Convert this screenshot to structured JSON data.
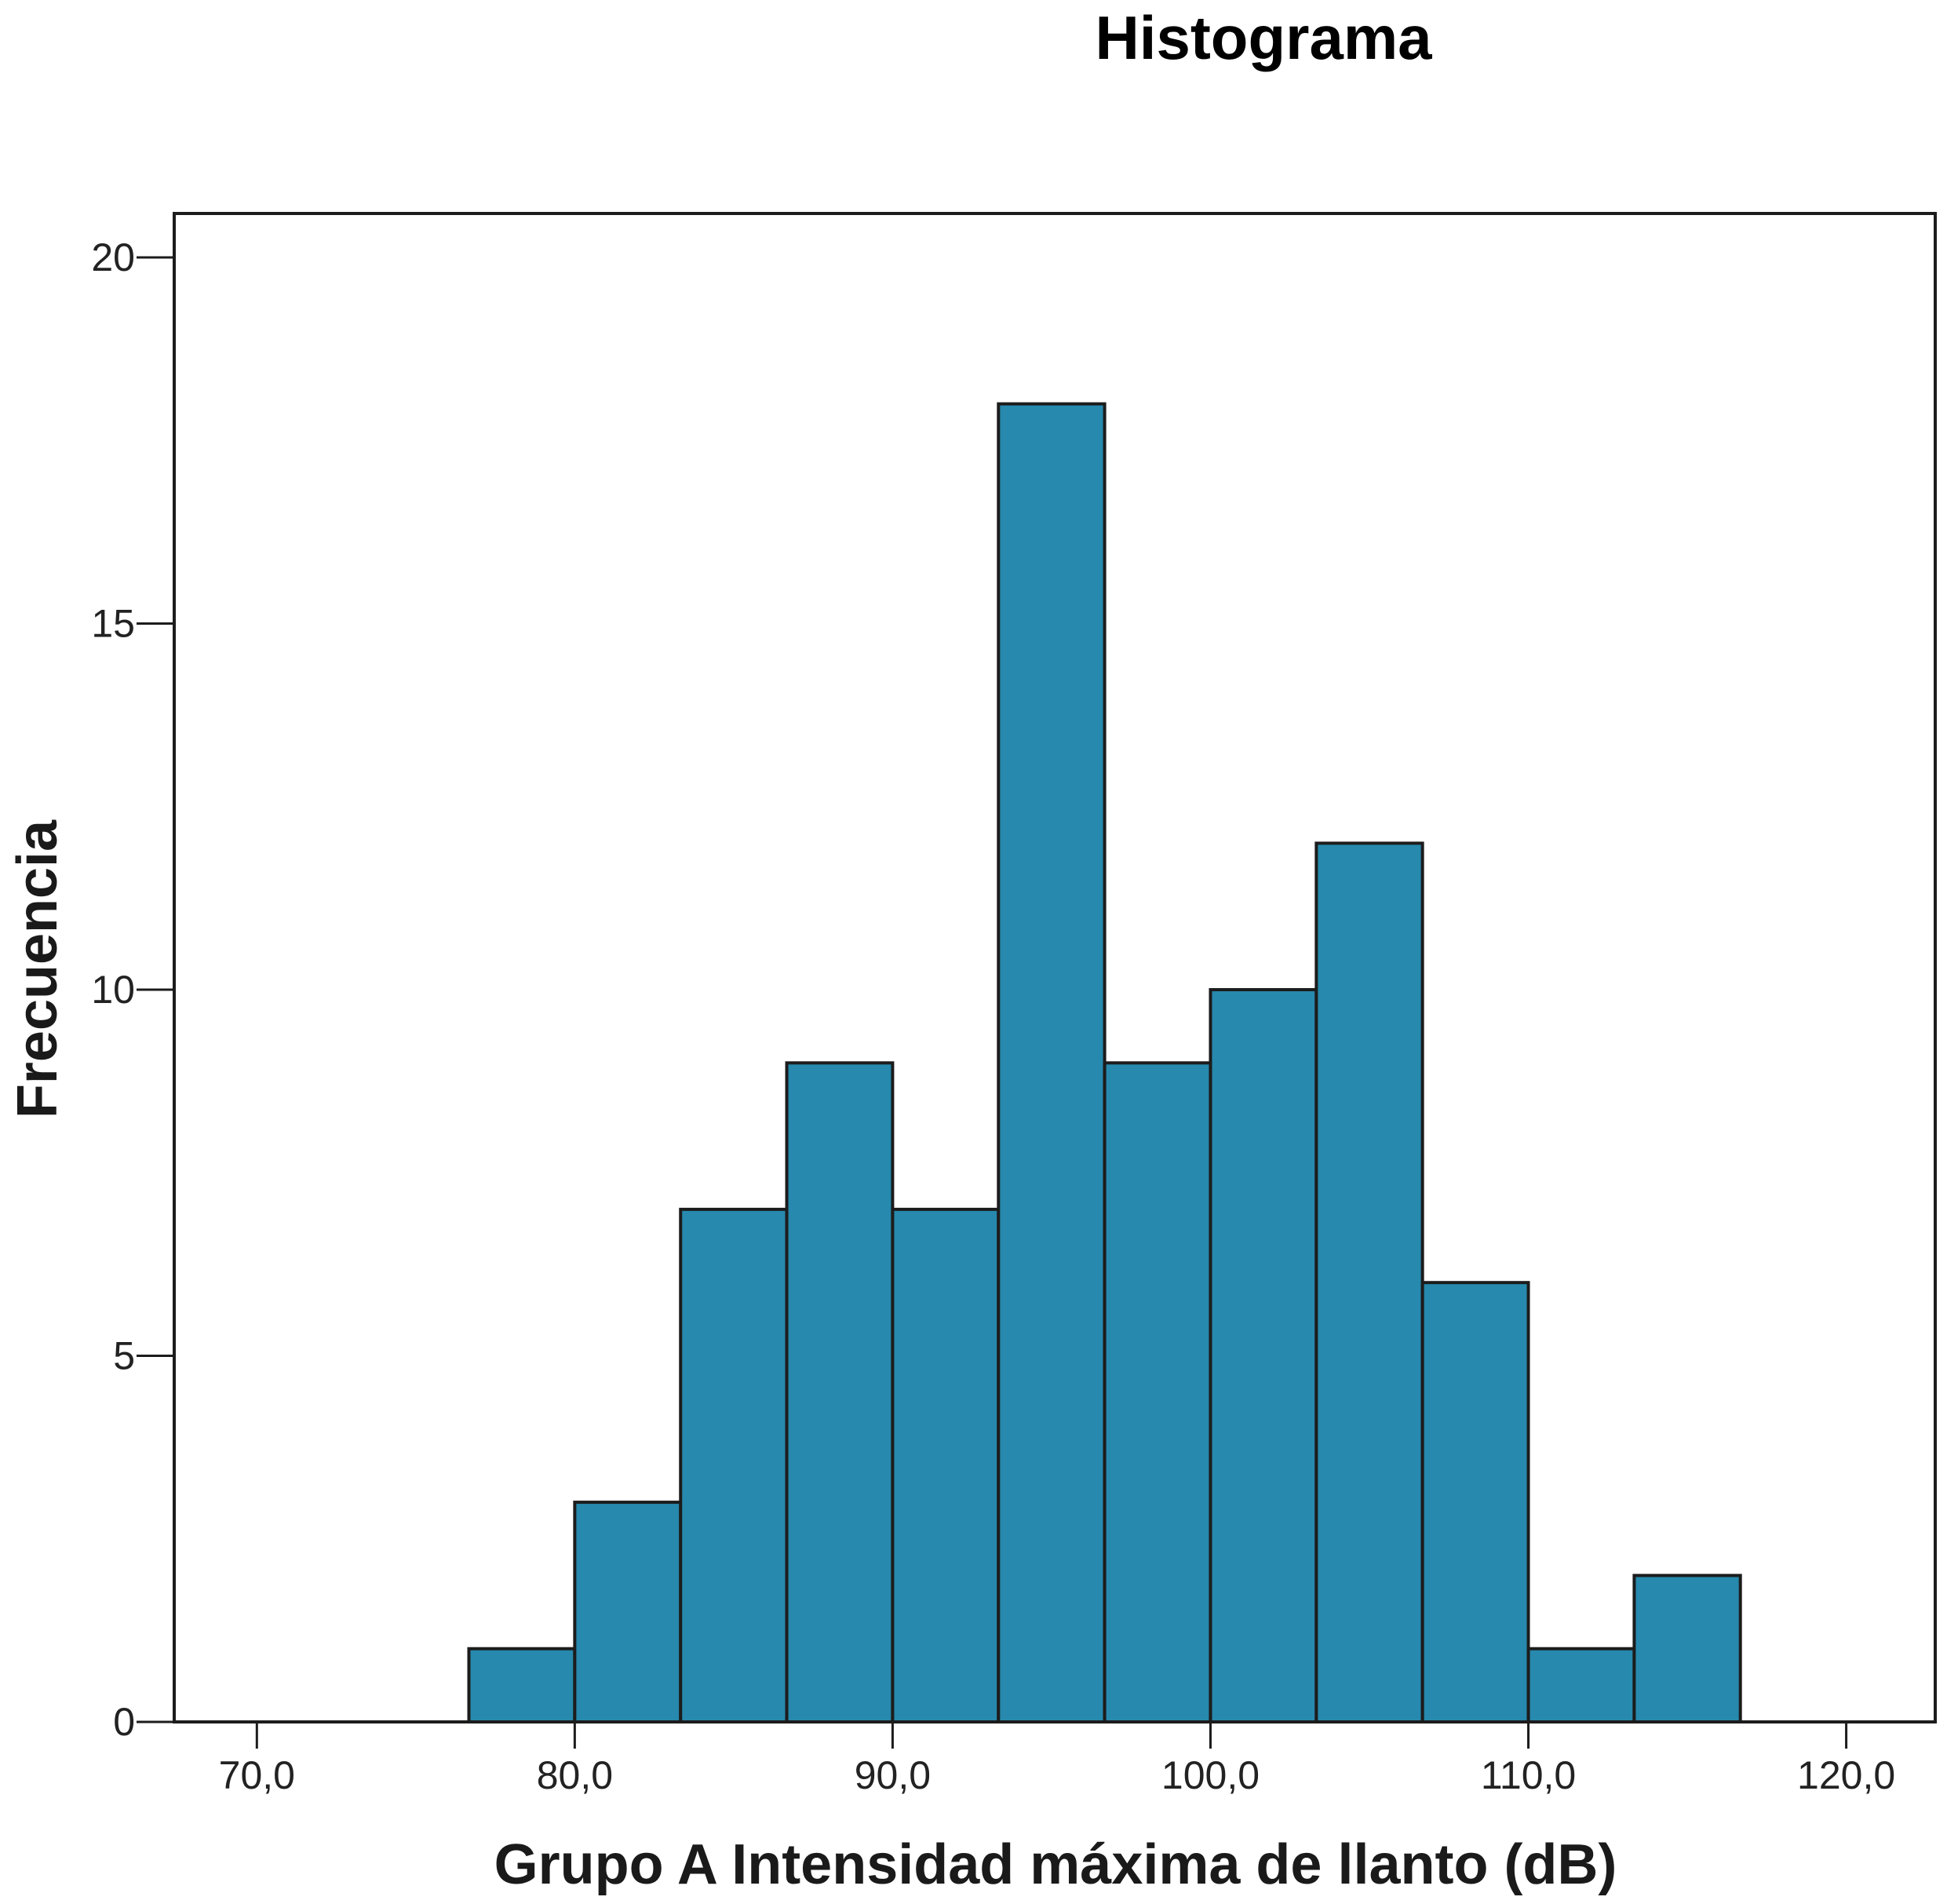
{
  "chart_data": {
    "type": "bar",
    "title": "Histograma",
    "xlabel": "Grupo A Intensidad máxima de llanto (dB)",
    "ylabel": "Frecuencia",
    "xlim": [
      67.4,
      122.8
    ],
    "ylim": [
      0,
      20.6
    ],
    "bin_width": 3.33,
    "bins": [
      {
        "start": 76.67,
        "end": 80.0,
        "value": 1
      },
      {
        "start": 80.0,
        "end": 83.33,
        "value": 3
      },
      {
        "start": 83.33,
        "end": 86.67,
        "value": 7
      },
      {
        "start": 86.67,
        "end": 90.0,
        "value": 9
      },
      {
        "start": 90.0,
        "end": 93.33,
        "value": 7
      },
      {
        "start": 93.33,
        "end": 96.67,
        "value": 18
      },
      {
        "start": 96.67,
        "end": 100.0,
        "value": 9
      },
      {
        "start": 100.0,
        "end": 103.33,
        "value": 10
      },
      {
        "start": 103.33,
        "end": 106.67,
        "value": 12
      },
      {
        "start": 106.67,
        "end": 110.0,
        "value": 6
      },
      {
        "start": 110.0,
        "end": 113.33,
        "value": 1
      },
      {
        "start": 113.33,
        "end": 116.67,
        "value": 2
      }
    ],
    "x_ticks": [
      {
        "value": 70,
        "label": "70,0"
      },
      {
        "value": 80,
        "label": "80,0"
      },
      {
        "value": 90,
        "label": "90,0"
      },
      {
        "value": 100,
        "label": "100,0"
      },
      {
        "value": 110,
        "label": "110,0"
      },
      {
        "value": 120,
        "label": "120,0"
      }
    ],
    "y_ticks": [
      {
        "value": 0,
        "label": "0"
      },
      {
        "value": 5,
        "label": "5"
      },
      {
        "value": 10,
        "label": "10"
      },
      {
        "value": 15,
        "label": "15"
      },
      {
        "value": 20,
        "label": "20"
      }
    ],
    "bar_color": "#2789ad",
    "grid": false
  }
}
